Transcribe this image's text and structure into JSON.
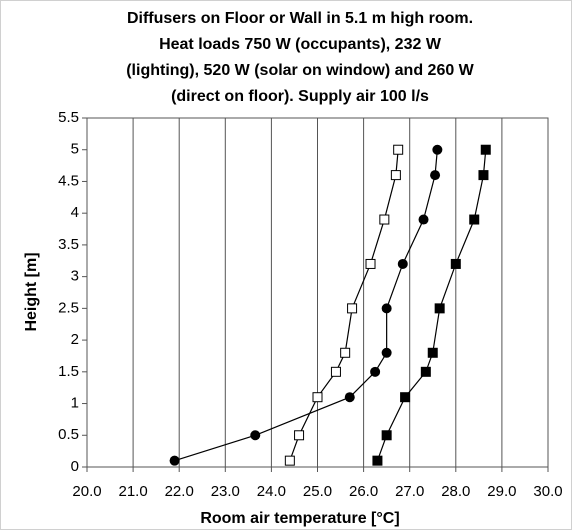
{
  "chart_data": {
    "type": "line",
    "title": [
      "Diffusers on Floor or Wall in 5.1 m high room.",
      "Heat loads 750 W (occupants), 232 W",
      "(lighting), 520 W (solar on window) and 260 W",
      "(direct on floor). Supply air 100 l/s"
    ],
    "x_label": "Room air temperature [°C]",
    "y_label": "Height [m]",
    "series": [
      {
        "color": "#000000",
        "marker": "square-open",
        "x": [
          24.4,
          24.6,
          25.0,
          25.4,
          25.6,
          25.75,
          26.15,
          26.45,
          26.7,
          26.75
        ],
        "values": [
          0.1,
          0.5,
          1.1,
          1.5,
          1.8,
          2.5,
          3.2,
          3.9,
          4.6,
          5.0
        ]
      },
      {
        "color": "#000000",
        "marker": "circle",
        "x": [
          21.9,
          23.65,
          25.7,
          26.25,
          26.5,
          26.5,
          26.85,
          27.3,
          27.55,
          27.6
        ],
        "values": [
          0.1,
          0.5,
          1.1,
          1.5,
          1.8,
          2.5,
          3.2,
          3.9,
          4.6,
          5.0
        ]
      },
      {
        "color": "#000000",
        "marker": "square",
        "x": [
          26.3,
          26.5,
          26.9,
          27.35,
          27.5,
          27.65,
          28.0,
          28.4,
          28.6,
          28.65
        ],
        "values": [
          0.1,
          0.5,
          1.1,
          1.5,
          1.8,
          2.5,
          3.2,
          3.9,
          4.6,
          5.0
        ]
      }
    ],
    "xlim": [
      20,
      30
    ],
    "xticks": [
      {
        "value": 20,
        "label": "20.0"
      },
      {
        "value": 21,
        "label": "21.0"
      },
      {
        "value": 22,
        "label": "22.0"
      },
      {
        "value": 23,
        "label": "23.0"
      },
      {
        "value": 24,
        "label": "24.0"
      },
      {
        "value": 25,
        "label": "25.0"
      },
      {
        "value": 26,
        "label": "26.0"
      },
      {
        "value": 27,
        "label": "27.0"
      },
      {
        "value": 28,
        "label": "28.0"
      },
      {
        "value": 29,
        "label": "29.0"
      },
      {
        "value": 30,
        "label": "30.0"
      }
    ],
    "ylim": [
      0,
      5.5
    ],
    "yticks": [
      0,
      0.5,
      1,
      1.5,
      2,
      2.5,
      3,
      3.5,
      4,
      4.5,
      5,
      5.5
    ],
    "grid": "x"
  }
}
